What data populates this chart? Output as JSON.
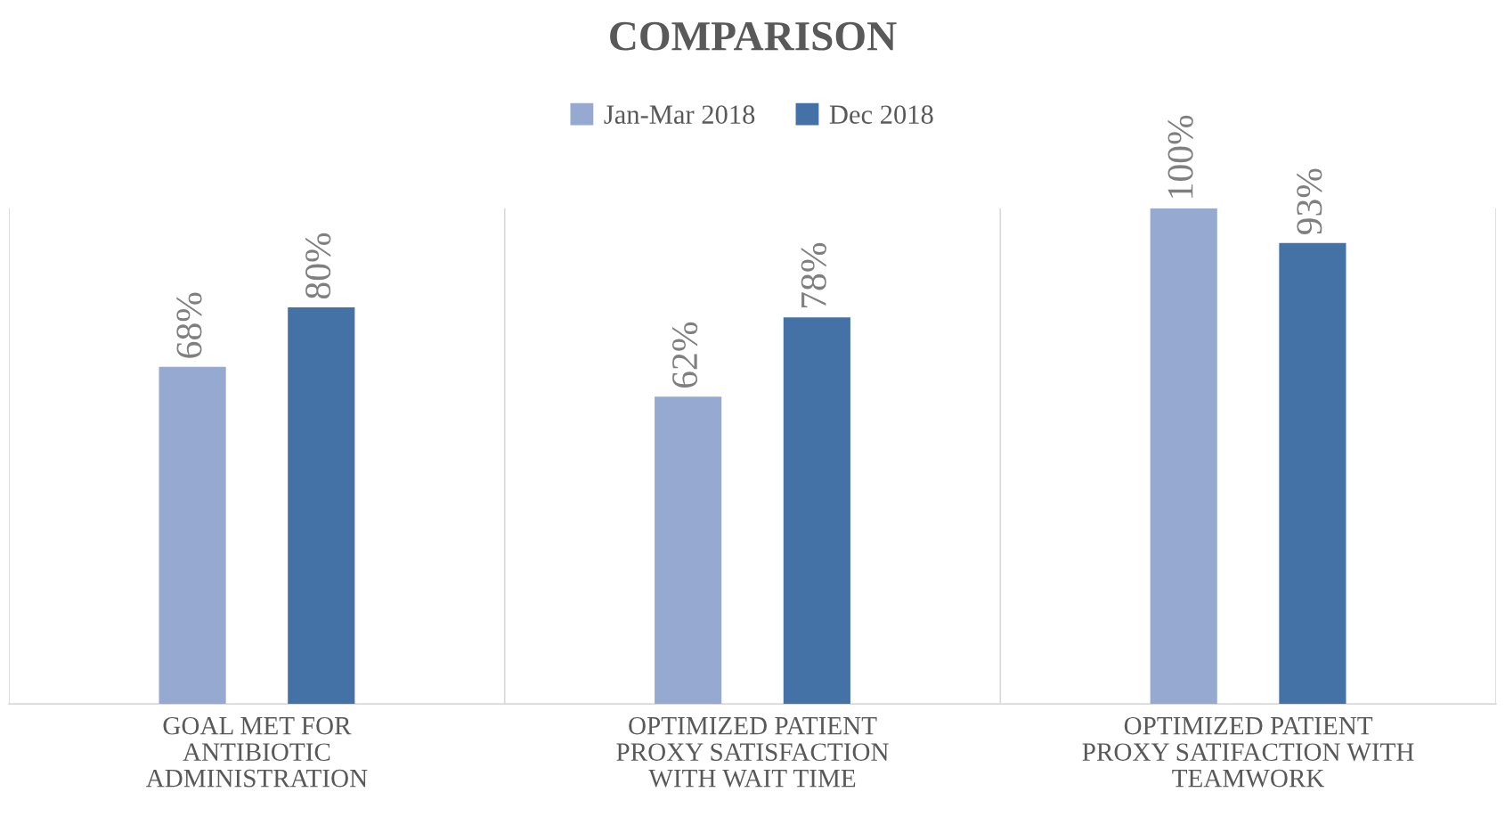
{
  "chart_data": {
    "type": "bar",
    "title": "COMPARISON",
    "categories": [
      "GOAL MET FOR\nANTIBIOTIC\nADMINISTRATION",
      "OPTIMIZED PATIENT\nPROXY SATISFACTION\nWITH WAIT TIME",
      "OPTIMIZED PATIENT\nPROXY SATIFACTION WITH\nTEAMWORK"
    ],
    "series": [
      {
        "name": "Jan-Mar 2018",
        "color": "#95a9d1",
        "values": [
          68,
          62,
          100
        ],
        "value_labels": [
          "68%",
          "62%",
          "100%"
        ]
      },
      {
        "name": "Dec 2018",
        "color": "#4472a6",
        "values": [
          80,
          78,
          93
        ],
        "value_labels": [
          "80%",
          "78%",
          "93%"
        ]
      }
    ],
    "ylim": [
      0,
      100
    ],
    "grid": "x",
    "legend": "top",
    "tick_labels": "x"
  }
}
